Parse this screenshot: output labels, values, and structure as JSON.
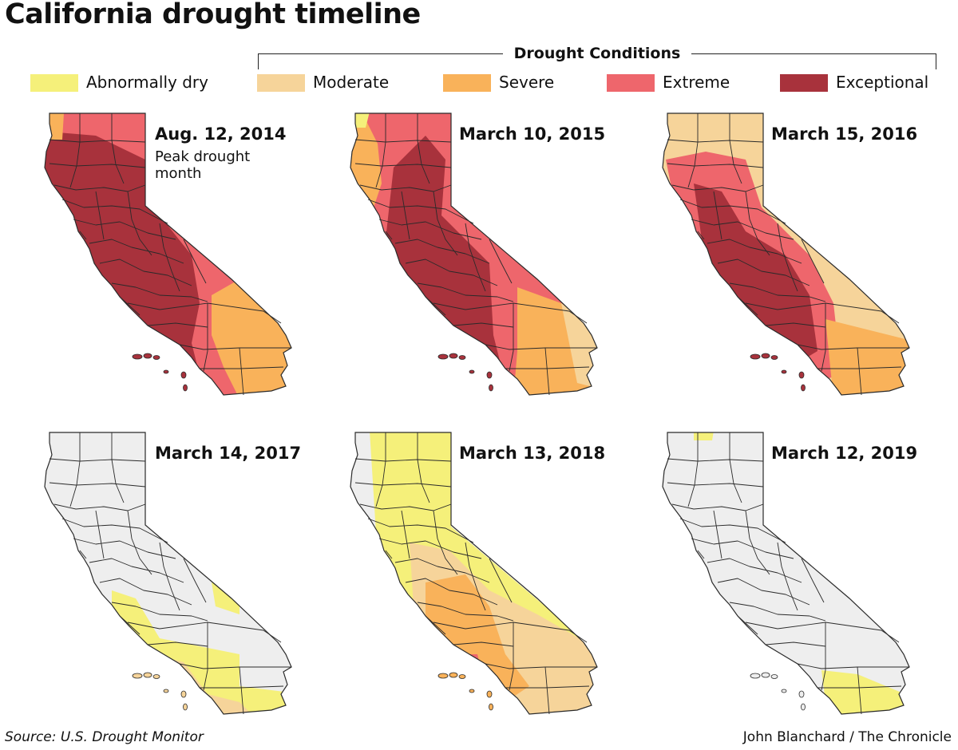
{
  "title": "California drought timeline",
  "legend": {
    "heading": "Drought Conditions",
    "items": [
      {
        "key": "D0",
        "label": "Abnormally dry",
        "color": "#f5f07a"
      },
      {
        "key": "D1",
        "label": "Moderate",
        "color": "#f6d49a"
      },
      {
        "key": "D2",
        "label": "Severe",
        "color": "#f9b25a"
      },
      {
        "key": "D3",
        "label": "Extreme",
        "color": "#ee666c"
      },
      {
        "key": "D4",
        "label": "Exceptional",
        "color": "#a8323c"
      }
    ],
    "none_color": "#eeeeee"
  },
  "panels": [
    {
      "date": "Aug. 12, 2014",
      "note": "Peak drought month"
    },
    {
      "date": "March 10, 2015",
      "note": ""
    },
    {
      "date": "March 15, 2016",
      "note": ""
    },
    {
      "date": "March 14, 2017",
      "note": ""
    },
    {
      "date": "March 13, 2018",
      "note": ""
    },
    {
      "date": "March 12, 2019",
      "note": ""
    }
  ],
  "source": "Source: U.S. Drought Monitor",
  "credit": "John Blanchard / The Chronicle"
}
